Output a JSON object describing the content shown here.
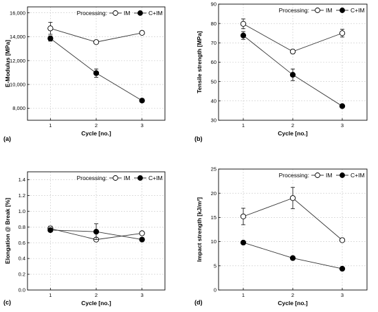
{
  "chart_data": [
    {
      "id": "a",
      "type": "line",
      "panel_label": "(a)",
      "xlabel": "Cycle [no.]",
      "ylabel": "E-Modulus [MPa]",
      "x_ticks": [
        1,
        2,
        3
      ],
      "x_tick_labels": [
        "1",
        "2",
        "3"
      ],
      "xlim": [
        0.5,
        3.5
      ],
      "ylim": [
        7000,
        16500
      ],
      "y_ticks": [
        8000,
        10000,
        12000,
        14000,
        16000
      ],
      "y_tick_labels": [
        "8,000",
        "10,000",
        "12,000",
        "14,000",
        "16,000"
      ],
      "grid": true,
      "legend": {
        "title": "Processing:",
        "placement": "top-right"
      },
      "series": [
        {
          "name": "IM",
          "marker": "open-circle",
          "x": [
            1,
            2,
            3
          ],
          "values": [
            14700,
            13550,
            14320
          ],
          "errors": [
            500,
            120,
            130
          ]
        },
        {
          "name": "C+IM",
          "marker": "filled-circle",
          "x": [
            1,
            2,
            3
          ],
          "values": [
            13850,
            10950,
            8650
          ],
          "errors": [
            220,
            350,
            120
          ]
        }
      ]
    },
    {
      "id": "b",
      "type": "line",
      "panel_label": "(b)",
      "xlabel": "Cycle [no.]",
      "ylabel": "Tensile strength [MPa]",
      "x_ticks": [
        1,
        2,
        3
      ],
      "x_tick_labels": [
        "1",
        "2",
        "3"
      ],
      "xlim": [
        0.5,
        3.5
      ],
      "ylim": [
        30,
        90
      ],
      "y_ticks": [
        30,
        40,
        50,
        60,
        70,
        80,
        90
      ],
      "y_tick_labels": [
        "30",
        "40",
        "50",
        "60",
        "70",
        "80",
        "90"
      ],
      "grid": true,
      "legend": {
        "title": "Processing:",
        "placement": "top-right"
      },
      "series": [
        {
          "name": "IM",
          "marker": "open-circle",
          "x": [
            1,
            2,
            3
          ],
          "values": [
            79.8,
            65.5,
            75.0
          ],
          "errors": [
            2.5,
            1.0,
            2.0
          ]
        },
        {
          "name": "C+IM",
          "marker": "filled-circle",
          "x": [
            1,
            2,
            3
          ],
          "values": [
            73.8,
            53.5,
            37.3
          ],
          "errors": [
            2.0,
            3.0,
            0.5
          ]
        }
      ]
    },
    {
      "id": "c",
      "type": "line",
      "panel_label": "(c)",
      "xlabel": "Cycle [no.]",
      "ylabel": "Elongation @ Break [%]",
      "x_ticks": [
        1,
        2,
        3
      ],
      "x_tick_labels": [
        "1",
        "2",
        "3"
      ],
      "xlim": [
        0.5,
        3.5
      ],
      "ylim": [
        0,
        1.5
      ],
      "y_ticks": [
        0.0,
        0.2,
        0.4,
        0.6,
        0.8,
        1.0,
        1.2,
        1.4
      ],
      "y_tick_labels": [
        "0.0",
        "0.2",
        "0.4",
        "0.6",
        "0.8",
        "1.0",
        "1.2",
        "1.4"
      ],
      "grid": true,
      "legend": {
        "title": "Processing:",
        "placement": "top-right"
      },
      "series": [
        {
          "name": "IM",
          "marker": "open-circle",
          "x": [
            1,
            2,
            3
          ],
          "values": [
            0.78,
            0.64,
            0.72
          ],
          "errors": [
            0.03,
            0.02,
            0.02
          ]
        },
        {
          "name": "C+IM",
          "marker": "filled-circle",
          "x": [
            1,
            2,
            3
          ],
          "values": [
            0.76,
            0.74,
            0.64
          ],
          "errors": [
            0.02,
            0.1,
            0.02
          ]
        }
      ]
    },
    {
      "id": "d",
      "type": "line",
      "panel_label": "(d)",
      "xlabel": "Cycle [no.]",
      "ylabel": "Impact strength [kJ/m²]",
      "x_ticks": [
        1,
        2,
        3
      ],
      "x_tick_labels": [
        "1",
        "2",
        "3"
      ],
      "xlim": [
        0.5,
        3.5
      ],
      "ylim": [
        0,
        25
      ],
      "y_ticks": [
        0,
        5,
        10,
        15,
        20,
        25
      ],
      "y_tick_labels": [
        "0",
        "5",
        "10",
        "15",
        "20",
        "25"
      ],
      "grid": true,
      "legend": {
        "title": "Processing:",
        "placement": "top-right"
      },
      "series": [
        {
          "name": "IM",
          "marker": "open-circle",
          "x": [
            1,
            2,
            3
          ],
          "values": [
            15.2,
            19.0,
            10.3
          ],
          "errors": [
            1.7,
            2.2,
            0.3
          ]
        },
        {
          "name": "C+IM",
          "marker": "filled-circle",
          "x": [
            1,
            2,
            3
          ],
          "values": [
            9.8,
            6.6,
            4.4
          ],
          "errors": [
            0.3,
            0.3,
            0.3
          ]
        }
      ]
    }
  ]
}
